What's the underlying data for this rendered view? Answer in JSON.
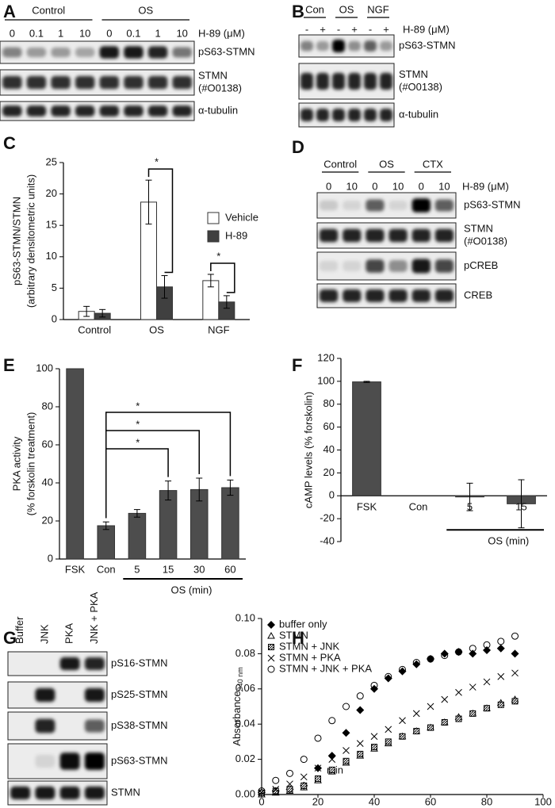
{
  "blots": [
    {
      "panel": "A",
      "groups": [
        "Control",
        "OS"
      ],
      "lanes": [
        "0",
        "0.1",
        "1",
        "10",
        "0",
        "0.1",
        "1",
        "10"
      ],
      "lane_unit": "H-89 (μM)",
      "rows": [
        [
          "pS63-STMN"
        ],
        [
          "STMN",
          "(#O0138)"
        ],
        [
          "α-tubulin"
        ]
      ]
    },
    {
      "panel": "B",
      "groups": [
        "Con",
        "OS",
        "NGF"
      ],
      "lanes": [
        "-",
        "+",
        "-",
        "+",
        "-",
        "+"
      ],
      "lane_unit": "H-89 (μM)",
      "rows": [
        [
          "pS63-STMN"
        ],
        [
          "STMN",
          "(#O0138)"
        ],
        [
          "α-tubulin"
        ]
      ]
    },
    {
      "panel": "D",
      "groups": [
        "Control",
        "OS",
        "CTX"
      ],
      "lanes": [
        "0",
        "10",
        "0",
        "10",
        "0",
        "10"
      ],
      "lane_unit": "H-89 (μM)",
      "rows": [
        [
          "pS63-STMN"
        ],
        [
          "STMN",
          "(#O0138)"
        ],
        [
          "pCREB"
        ],
        [
          "CREB"
        ]
      ]
    },
    {
      "panel": "G",
      "lanes": [
        "Buffer",
        "JNK",
        "PKA",
        "JNK + PKA"
      ],
      "rows": [
        [
          "pS16-STMN"
        ],
        [
          "pS25-STMN"
        ],
        [
          "pS38-STMN"
        ],
        [
          "pS63-STMN"
        ],
        [
          "STMN"
        ]
      ]
    }
  ],
  "chart_data": [
    {
      "type": "bar",
      "panel": "C",
      "y_label": [
        "pS63-STMN/STMN",
        "(arbitrary densitometric units)"
      ],
      "categories": [
        "Control",
        "OS",
        "NGF"
      ],
      "series": [
        {
          "name": "Vehicle",
          "color": "#ffffff",
          "values": [
            1.3,
            18.7,
            6.2
          ],
          "errors": [
            0.8,
            3.5,
            1.0
          ]
        },
        {
          "name": "H-89",
          "color": "#404040",
          "values": [
            1.0,
            5.2,
            2.8
          ],
          "errors": [
            0.6,
            1.8,
            1.0
          ]
        }
      ],
      "ylim": [
        0,
        25
      ],
      "yticks": [
        0,
        5,
        10,
        15,
        20,
        25
      ],
      "annotations": [
        "*",
        "*"
      ]
    },
    {
      "type": "bar",
      "panel": "E",
      "y_label": [
        "PKA activity",
        "(% forskolin treatment)"
      ],
      "categories": [
        "FSK",
        "Con",
        "5",
        "15",
        "30",
        "60"
      ],
      "group_label": "OS (min)",
      "series": [
        {
          "color": "#4d4d4d",
          "values": [
            100,
            17.5,
            24,
            36,
            36.5,
            37.5
          ],
          "errors": [
            0,
            2,
            2,
            5,
            6,
            4
          ]
        }
      ],
      "ylim": [
        0,
        100
      ],
      "yticks": [
        0,
        20,
        40,
        60,
        80,
        100
      ],
      "annotations": [
        "*",
        "*",
        "*"
      ]
    },
    {
      "type": "bar",
      "panel": "F",
      "y_label": [
        "cAMP levels (% forskolin)"
      ],
      "categories": [
        "FSK",
        "Con",
        "5",
        "15"
      ],
      "group_label": "OS (min)",
      "series": [
        {
          "color": "#4d4d4d",
          "values": [
            99.5,
            0,
            -1,
            -7
          ],
          "errors": [
            0.5,
            0,
            12,
            21
          ]
        }
      ],
      "ylim": [
        -40,
        120
      ],
      "yticks": [
        -40,
        -20,
        0,
        20,
        40,
        60,
        80,
        100,
        120
      ]
    },
    {
      "type": "scatter",
      "panel": "H",
      "y_label": "Absorbance",
      "y_label_sub": "340 nm",
      "x_label": "min",
      "x": [
        0,
        5,
        10,
        15,
        20,
        25,
        30,
        35,
        40,
        45,
        50,
        55,
        60,
        65,
        70,
        75,
        80,
        85,
        90
      ],
      "series": [
        {
          "name": "buffer only",
          "marker": "diamond",
          "color": "#000000",
          "values": [
            0.001,
            0.002,
            0.003,
            0.005,
            0.015,
            0.022,
            0.035,
            0.048,
            0.06,
            0.066,
            0.07,
            0.074,
            0.077,
            0.08,
            0.081,
            0.08,
            0.082,
            0.083,
            0.08
          ]
        },
        {
          "name": "STMN",
          "marker": "triangle",
          "color": "#000000",
          "values": [
            0,
            0.001,
            0.002,
            0.004,
            0.008,
            0.013,
            0.018,
            0.022,
            0.026,
            0.029,
            0.033,
            0.036,
            0.038,
            0.041,
            0.044,
            0.046,
            0.049,
            0.052,
            0.054
          ]
        },
        {
          "name": "STMN + JNK",
          "marker": "square",
          "color": "#000000",
          "values": [
            0.001,
            0.002,
            0.003,
            0.005,
            0.009,
            0.014,
            0.019,
            0.023,
            0.027,
            0.03,
            0.033,
            0.036,
            0.038,
            0.041,
            0.043,
            0.046,
            0.049,
            0.051,
            0.053
          ]
        },
        {
          "name": "STMN + PKA",
          "marker": "x",
          "color": "#000000",
          "values": [
            0.001,
            0.003,
            0.006,
            0.01,
            0.015,
            0.02,
            0.025,
            0.029,
            0.033,
            0.037,
            0.042,
            0.046,
            0.05,
            0.054,
            0.058,
            0.061,
            0.064,
            0.067,
            0.069
          ]
        },
        {
          "name": "STMN + JNK + PKA",
          "marker": "circle",
          "color": "#000000",
          "values": [
            0.002,
            0.008,
            0.012,
            0.02,
            0.032,
            0.042,
            0.05,
            0.056,
            0.062,
            0.067,
            0.071,
            0.075,
            0.077,
            0.079,
            0.081,
            0.083,
            0.085,
            0.087,
            0.09
          ]
        }
      ],
      "xlim": [
        0,
        100
      ],
      "xticks": [
        0,
        20,
        40,
        60,
        80,
        100
      ],
      "ylim": [
        0,
        0.1
      ],
      "yticks": [
        {
          "value": 0,
          "label": "0.00"
        },
        {
          "value": 0.02,
          "label": "0.02"
        },
        {
          "value": 0.04,
          "label": "0.04"
        },
        {
          "value": 0.06,
          "label": "0.06"
        },
        {
          "value": 0.08,
          "label": "0.08"
        },
        {
          "value": 0.1,
          "label": "0.10"
        }
      ]
    }
  ]
}
